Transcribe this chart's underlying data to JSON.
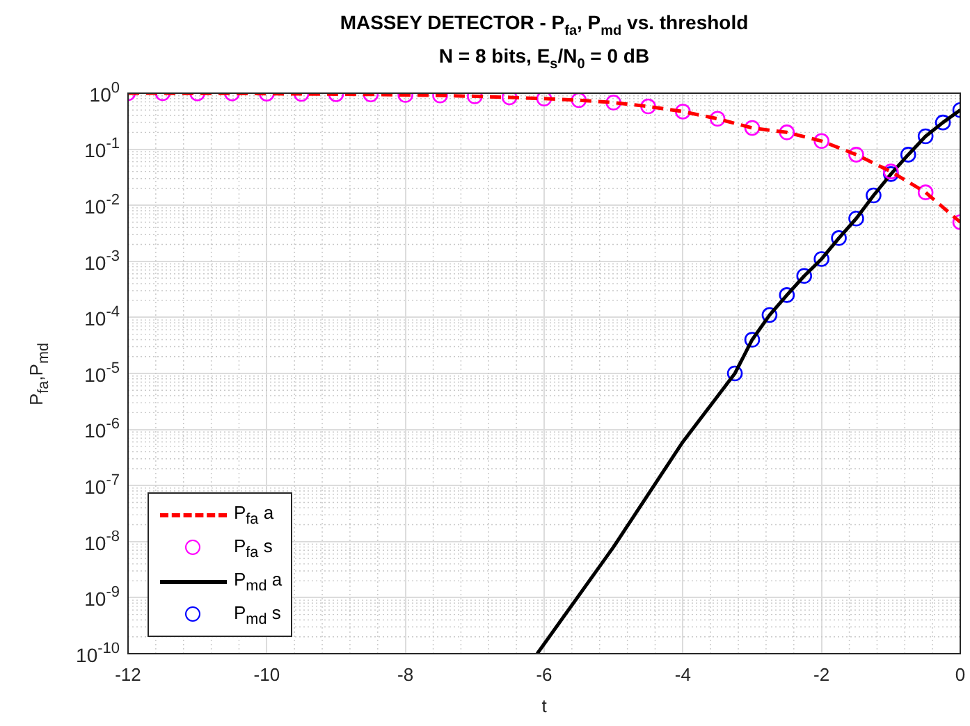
{
  "chart_data": {
    "type": "line",
    "title": "MASSEY DETECTOR - P$_{fa}$, P$_{md}$ vs. threshold",
    "subtitle": "N = 8 bits, E$_{s}$/N$_{0}$ = 0 dB",
    "xlabel": "t",
    "ylabel": "P$_{fa}$,P$_{md}$",
    "log": "y",
    "grid": true,
    "legend": "bottom left",
    "xlim": [
      -12,
      0
    ],
    "xticks": [
      -12,
      -10,
      -8,
      -6,
      -4,
      -2,
      0
    ],
    "ylim": [
      1e-10,
      1
    ],
    "yticks": [
      {
        "value": 1e-10,
        "label": "10$^{-10}$"
      },
      {
        "value": 1e-09,
        "label": "10$^{-9}$"
      },
      {
        "value": 1e-08,
        "label": "10$^{-8}$"
      },
      {
        "value": 1e-07,
        "label": "10$^{-7}$"
      },
      {
        "value": 1e-06,
        "label": "10$^{-6}$"
      },
      {
        "value": 1e-05,
        "label": "10$^{-5}$"
      },
      {
        "value": 0.0001,
        "label": "10$^{-4}$"
      },
      {
        "value": 0.001,
        "label": "10$^{-3}$"
      },
      {
        "value": 0.01,
        "label": "10$^{-2}$"
      },
      {
        "value": 0.1,
        "label": "10$^{-1}$"
      },
      {
        "value": 1,
        "label": "10$^{0}$"
      }
    ],
    "series": [
      {
        "name": "P$_{fa}$ a",
        "type": "line",
        "color": "#ff0000",
        "line_style": "dashed",
        "marker": "none",
        "x": [
          -12,
          -11.5,
          -11,
          -10.5,
          -10,
          -9.5,
          -9,
          -8.5,
          -8,
          -7.5,
          -7,
          -6.5,
          -6,
          -5.5,
          -5,
          -4.5,
          -4,
          -3.5,
          -3,
          -2.5,
          -2,
          -1.5,
          -1,
          -0.5,
          0
        ],
        "values": [
          1.0,
          1.0,
          0.99,
          0.99,
          0.98,
          0.97,
          0.96,
          0.95,
          0.93,
          0.91,
          0.88,
          0.84,
          0.8,
          0.75,
          0.68,
          0.58,
          0.47,
          0.35,
          0.24,
          0.2,
          0.14,
          0.08,
          0.04,
          0.017,
          0.005
        ]
      },
      {
        "name": "P$_{fa}$ s",
        "type": "scatter",
        "color": "#ff00ff",
        "marker": "circle",
        "x": [
          -12,
          -11.5,
          -11,
          -10.5,
          -10,
          -9.5,
          -9,
          -8.5,
          -8,
          -7.5,
          -7,
          -6.5,
          -6,
          -5.5,
          -5,
          -4.5,
          -4,
          -3.5,
          -3,
          -2.5,
          -2,
          -1.5,
          -1,
          -0.5,
          0
        ],
        "values": [
          1.0,
          1.0,
          0.99,
          0.99,
          0.98,
          0.97,
          0.96,
          0.95,
          0.93,
          0.91,
          0.88,
          0.84,
          0.8,
          0.75,
          0.68,
          0.58,
          0.47,
          0.35,
          0.24,
          0.2,
          0.14,
          0.08,
          0.04,
          0.017,
          0.005
        ]
      },
      {
        "name": "P$_{md}$ a",
        "type": "line",
        "color": "#000000",
        "line_style": "solid",
        "marker": "none",
        "x": [
          -6.1,
          -5,
          -4,
          -3.25,
          -3,
          -2.75,
          -2.5,
          -2.25,
          -2,
          -1.75,
          -1.5,
          -1.25,
          -1,
          -0.75,
          -0.5,
          -0.25,
          0
        ],
        "values": [
          1e-10,
          8e-09,
          6e-07,
          1e-05,
          4e-05,
          0.00011,
          0.00025,
          0.00055,
          0.0011,
          0.0026,
          0.0058,
          0.015,
          0.036,
          0.08,
          0.17,
          0.3,
          0.5
        ]
      },
      {
        "name": "P$_{md}$ s",
        "type": "scatter",
        "color": "#0000ff",
        "marker": "circle",
        "x": [
          -3.25,
          -3,
          -2.75,
          -2.5,
          -2.25,
          -2,
          -1.75,
          -1.5,
          -1.25,
          -1,
          -0.75,
          -0.5,
          -0.25,
          0
        ],
        "values": [
          1e-05,
          4e-05,
          0.00011,
          0.00025,
          0.00055,
          0.0011,
          0.0026,
          0.0058,
          0.015,
          0.036,
          0.08,
          0.17,
          0.3,
          0.5
        ]
      }
    ]
  }
}
